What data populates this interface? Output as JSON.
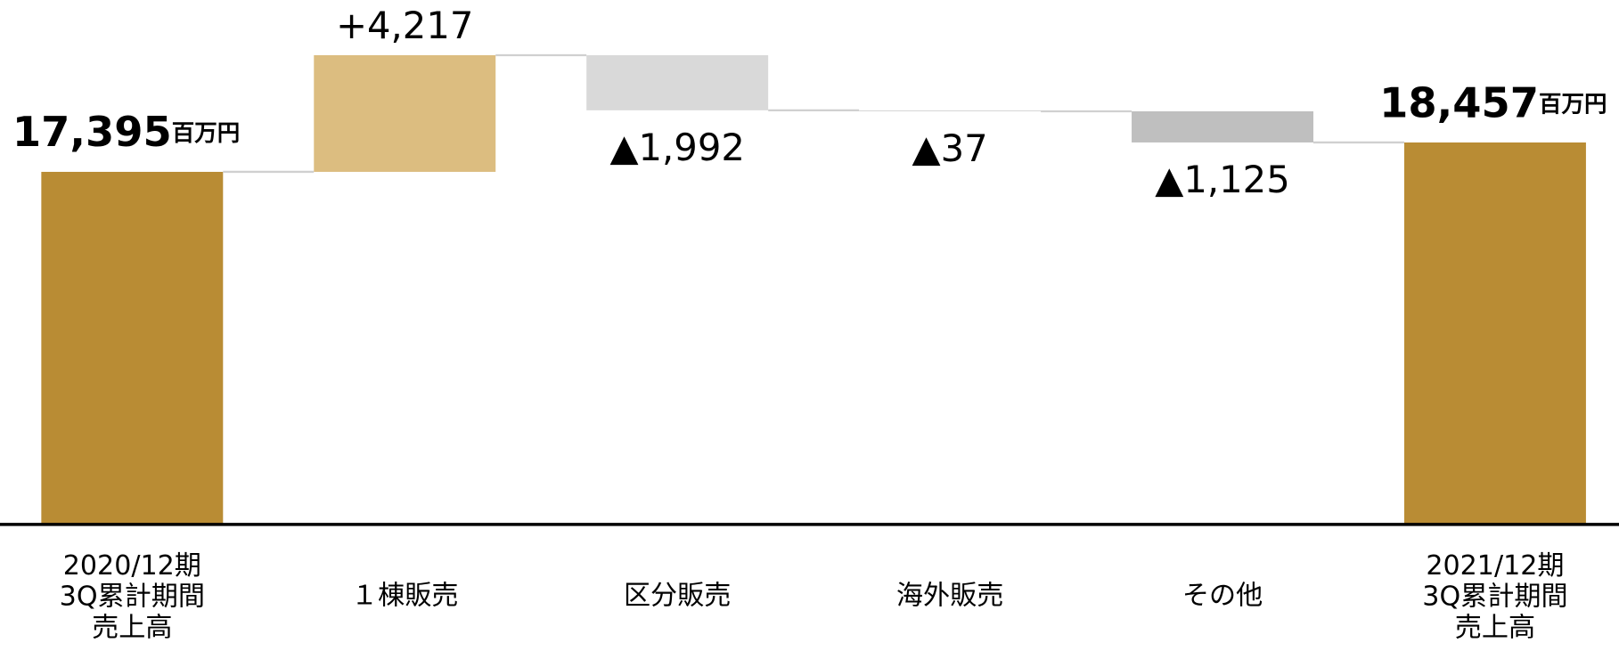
{
  "chart_data": {
    "type": "waterfall",
    "categories": [
      [
        "2020/12期",
        "3Q累計期間",
        "売上高"
      ],
      [
        "１棟販売"
      ],
      [
        "区分販売"
      ],
      [
        "海外販売"
      ],
      [
        "その他"
      ],
      [
        "2021/12期",
        "3Q累計期間",
        "売上高"
      ]
    ],
    "measures": [
      "total",
      "relative",
      "relative",
      "relative",
      "relative",
      "total"
    ],
    "values": [
      17395,
      4217,
      -1992,
      -37,
      -1125,
      18457
    ],
    "value_labels": [
      "17,395",
      "+4,217",
      "▲1,992",
      "▲37",
      "▲1,125",
      "18,457"
    ],
    "unit": "百万円",
    "colors": [
      "#b98c34",
      "#dcbd80",
      "#d9d9d9",
      "#d9d9d9",
      "#bfbfbf",
      "#b98c34"
    ],
    "ylim": [
      4650,
      23600
    ]
  }
}
